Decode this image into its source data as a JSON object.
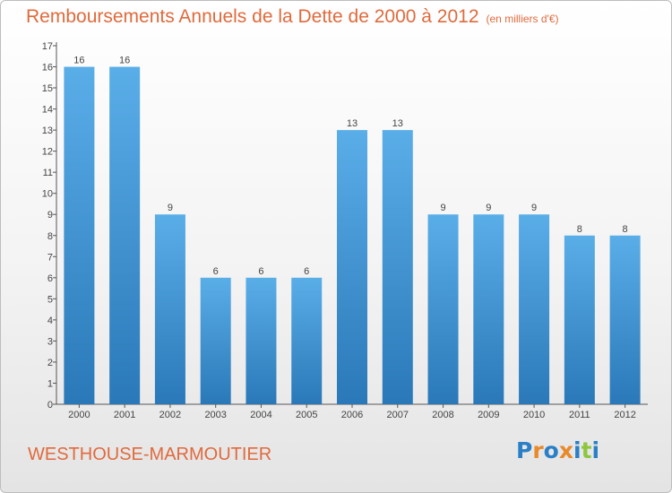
{
  "title": "Remboursements Annuels de la Dette de 2000 à 2012",
  "unit_note": "(en milliers d'€)",
  "city": "WESTHOUSE-MARMOUTIER",
  "logo": {
    "letters": [
      "P",
      "r",
      "o",
      "x",
      "i",
      "t",
      "i"
    ],
    "colors": [
      "#2a7fc6",
      "#e8892a",
      "#2a7fc6",
      "#e8892a",
      "#2a7fc6",
      "#8ec640",
      "#2a7fc6"
    ]
  },
  "colors": {
    "title": "#e06a3c",
    "bar_light": "#5aaee8",
    "bar_dark": "#2a78b8"
  },
  "chart_data": {
    "type": "bar",
    "title": "Remboursements Annuels de la Dette de 2000 à 2012",
    "categories": [
      "2000",
      "2001",
      "2002",
      "2003",
      "2004",
      "2005",
      "2006",
      "2007",
      "2008",
      "2009",
      "2010",
      "2011",
      "2012"
    ],
    "values": [
      16,
      16,
      9,
      6,
      6,
      6,
      13,
      13,
      9,
      9,
      9,
      8,
      8
    ],
    "data_labels": [
      "16",
      "16",
      "9",
      "6",
      "6",
      "6",
      "13",
      "13",
      "9",
      "9",
      "9",
      "8",
      "8"
    ],
    "yticks": [
      "0",
      "1",
      "2",
      "3",
      "4",
      "5",
      "6",
      "7",
      "8",
      "9",
      "10",
      "11",
      "12",
      "13",
      "14",
      "15",
      "16",
      "17"
    ],
    "ylim": [
      0,
      17
    ],
    "grid": false
  }
}
